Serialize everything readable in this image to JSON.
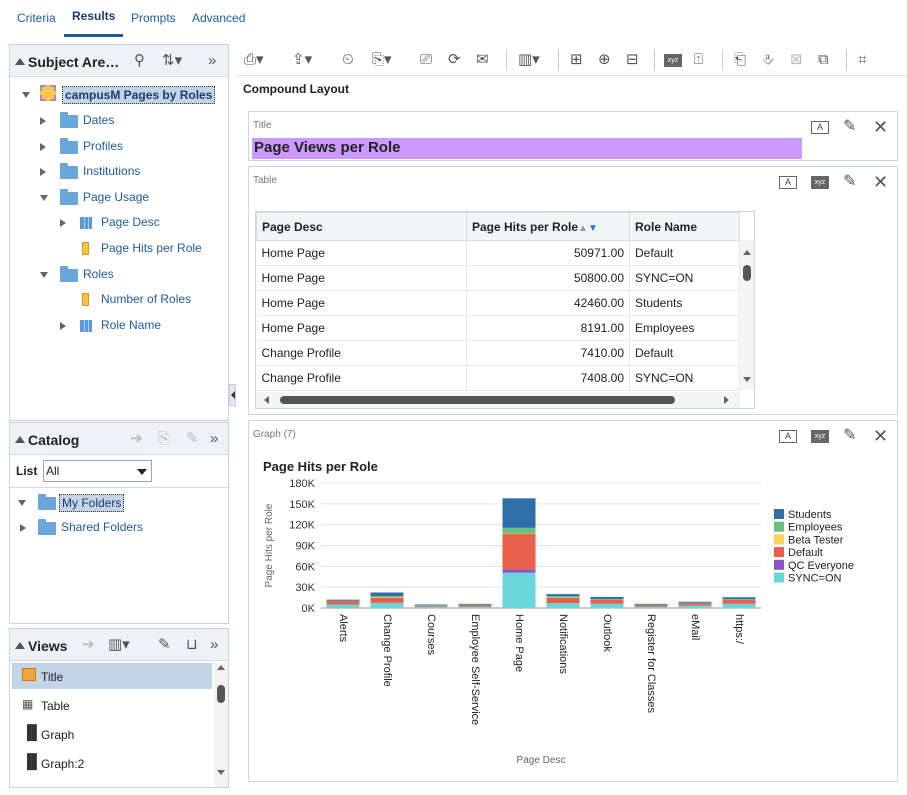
{
  "tabs": [
    {
      "label": "Criteria"
    },
    {
      "label": "Results"
    },
    {
      "label": "Prompts"
    },
    {
      "label": "Advanced"
    }
  ],
  "subject_area": {
    "title": "Subject Are…",
    "root": "campusM Pages by Roles",
    "items": [
      {
        "label": "Dates"
      },
      {
        "label": "Profiles"
      },
      {
        "label": "Institutions"
      },
      {
        "label": "Page Usage"
      },
      {
        "label": "Page Desc"
      },
      {
        "label": "Page Hits per Role"
      },
      {
        "label": "Roles"
      },
      {
        "label": "Number of Roles"
      },
      {
        "label": "Role Name"
      }
    ]
  },
  "catalog": {
    "title": "Catalog",
    "list_label": "List",
    "list_value": "All",
    "items": [
      {
        "label": "My Folders"
      },
      {
        "label": "Shared Folders"
      }
    ]
  },
  "views": {
    "title": "Views",
    "items": [
      {
        "label": "Title"
      },
      {
        "label": "Table"
      },
      {
        "label": "Graph"
      },
      {
        "label": "Graph:2"
      }
    ]
  },
  "layout": {
    "name": "Compound Layout",
    "title_view_label": "Title",
    "title_text": "Page Views per Role",
    "table_view_label": "Table",
    "graph_view_label": "Graph (7)",
    "title_bar_color": "#cc99ff"
  },
  "table": {
    "columns": [
      "Page Desc",
      "Page Hits per Role",
      "Role Name"
    ],
    "rows": [
      [
        "Home Page",
        "50971.00",
        "Default"
      ],
      [
        "Home Page",
        "50800.00",
        "SYNC=ON"
      ],
      [
        "Home Page",
        "42460.00",
        "Students"
      ],
      [
        "Home Page",
        "8191.00",
        "Employees"
      ],
      [
        "Change Profile",
        "7410.00",
        "Default"
      ],
      [
        "Change Profile",
        "7408.00",
        "SYNC=ON"
      ]
    ]
  },
  "chart_data": {
    "type": "bar",
    "stacked": true,
    "title": "Page Hits per Role",
    "xlabel": "Page Desc",
    "ylabel": "Page Hits per Role",
    "ylim": [
      0,
      180000
    ],
    "yticks": [
      "0K",
      "30K",
      "60K",
      "90K",
      "120K",
      "150K",
      "180K"
    ],
    "legend_position": "right",
    "categories": [
      "Alerts",
      "Change Profile",
      "Courses",
      "Employee Self-Service",
      "Home Page",
      "Notifications",
      "Outlook",
      "Register for Classes",
      "eMail",
      "https:/"
    ],
    "series": [
      {
        "name": "SYNC=ON",
        "color": "#6ad6dc",
        "values": [
          5000,
          7408,
          2000,
          2000,
          50800,
          7000,
          6000,
          2000,
          3500,
          6000
        ]
      },
      {
        "name": "QC Everyone",
        "color": "#8a55c4",
        "values": [
          0,
          0,
          0,
          0,
          5000,
          0,
          0,
          0,
          0,
          0
        ]
      },
      {
        "name": "Default",
        "color": "#e8604c",
        "values": [
          5000,
          7410,
          1500,
          2500,
          50971,
          7500,
          6000,
          2500,
          3500,
          6000
        ]
      },
      {
        "name": "Beta Tester",
        "color": "#f7d25c",
        "values": [
          0,
          500,
          0,
          0,
          500,
          500,
          0,
          0,
          0,
          0
        ]
      },
      {
        "name": "Employees",
        "color": "#6bbf7c",
        "values": [
          500,
          2000,
          500,
          500,
          8191,
          2000,
          1000,
          500,
          500,
          1000
        ]
      },
      {
        "name": "Students",
        "color": "#2e6fa8",
        "values": [
          1500,
          5000,
          1000,
          1000,
          42460,
          3000,
          3000,
          1000,
          1500,
          2500
        ]
      }
    ]
  }
}
